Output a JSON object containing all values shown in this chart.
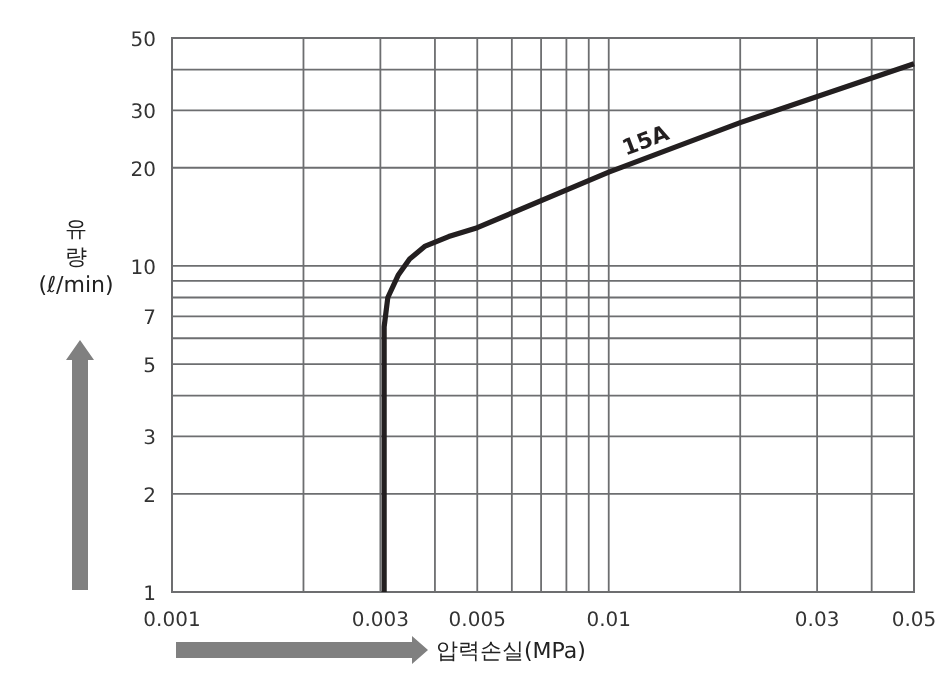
{
  "chart_data": {
    "type": "line",
    "xlabel": "압력손실(MPa)",
    "ylabel": "유량(ℓ/min)",
    "log": "xy",
    "grid": true,
    "marker": "none",
    "line_style": "solid",
    "xlim": [
      0.001,
      0.05
    ],
    "ylim": [
      1,
      50
    ],
    "xticks": [
      0.001,
      {
        "value": 0.002,
        "label": null
      },
      0.003,
      {
        "value": 0.004,
        "label": null
      },
      0.005,
      {
        "value": 0.006,
        "label": null
      },
      {
        "value": 0.007,
        "label": null
      },
      {
        "value": 0.008,
        "label": null
      },
      {
        "value": 0.009,
        "label": null
      },
      0.01,
      {
        "value": 0.02,
        "label": null
      },
      0.03,
      {
        "value": 0.04,
        "label": null
      },
      0.05
    ],
    "yticks": [
      1,
      2,
      3,
      {
        "value": 4,
        "label": null
      },
      5,
      {
        "value": 6,
        "label": null
      },
      7,
      {
        "value": 8,
        "label": null
      },
      {
        "value": 9,
        "label": null
      },
      10,
      20,
      30,
      {
        "value": 40,
        "label": null
      },
      50
    ],
    "series": [
      {
        "name": "15A",
        "color": "#231f20",
        "x": [
          0.00306,
          0.00306,
          0.00312,
          0.0033,
          0.0035,
          0.0038,
          0.0043,
          0.005,
          0.01,
          0.02,
          0.05
        ],
        "values": [
          1,
          6.5,
          8,
          9.4,
          10.5,
          11.5,
          12.3,
          13.1,
          19.4,
          27.5,
          41.7
        ]
      }
    ]
  }
}
